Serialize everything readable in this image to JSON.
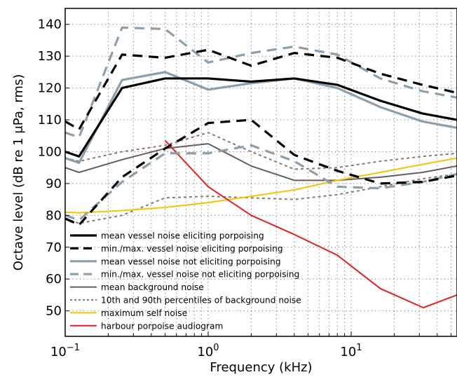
{
  "chart_data": {
    "type": "line",
    "xlabel": "Frequency (kHz)",
    "ylabel": "Octave level (dB re 1 μPa, rms)",
    "x_scale": "log",
    "xlim": [
      0.1,
      55
    ],
    "ylim": [
      42,
      145
    ],
    "grid": true,
    "legend_position": "lower-left",
    "x_ticks": [
      {
        "value": 0.1,
        "base": "10",
        "exp": "−1"
      },
      {
        "value": 1,
        "base": "10",
        "exp": "0"
      },
      {
        "value": 10,
        "base": "10",
        "exp": "1"
      }
    ],
    "y_ticks": [
      {
        "value": 50,
        "label": "50"
      },
      {
        "value": 60,
        "label": "60"
      },
      {
        "value": 70,
        "label": "70"
      },
      {
        "value": 80,
        "label": "80"
      },
      {
        "value": 90,
        "label": "90"
      },
      {
        "value": 100,
        "label": "100"
      },
      {
        "value": 110,
        "label": "110"
      },
      {
        "value": 120,
        "label": "120"
      },
      {
        "value": 130,
        "label": "130"
      },
      {
        "value": 140,
        "label": "140"
      }
    ],
    "series": [
      {
        "name": "mean vessel noise eliciting porpoising",
        "color": "#000000",
        "style": "solid",
        "width": 3.2,
        "points": [
          [
            0.1,
            100
          ],
          [
            0.125,
            98.5
          ],
          [
            0.25,
            120
          ],
          [
            0.5,
            123
          ],
          [
            1,
            123
          ],
          [
            2,
            122
          ],
          [
            4,
            123
          ],
          [
            8,
            121
          ],
          [
            16,
            116
          ],
          [
            31.5,
            112
          ],
          [
            55,
            110
          ]
        ]
      },
      {
        "name": "min./max. vessel noise eliciting porpoising",
        "color": "#000000",
        "style": "dash",
        "width": 3.2,
        "points": [
          [
            0.1,
            109.5
          ],
          [
            0.125,
            107
          ],
          [
            0.25,
            130.5
          ],
          [
            0.5,
            129.5
          ],
          [
            1,
            132
          ],
          [
            2,
            127
          ],
          [
            4,
            131
          ],
          [
            8,
            129.5
          ],
          [
            16,
            124.5
          ],
          [
            31.5,
            121
          ],
          [
            55,
            118.5
          ]
        ],
        "points2": [
          [
            0.1,
            79
          ],
          [
            0.125,
            77
          ],
          [
            0.25,
            92
          ],
          [
            0.5,
            101
          ],
          [
            1,
            109
          ],
          [
            2,
            110
          ],
          [
            4,
            99
          ],
          [
            8,
            94
          ],
          [
            16,
            90
          ],
          [
            31.5,
            90.5
          ],
          [
            55,
            92.5
          ]
        ]
      },
      {
        "name": "mean vessel noise not eliciting porpoising",
        "color": "#8c9fac",
        "style": "solid",
        "width": 3.2,
        "points": [
          [
            0.1,
            98
          ],
          [
            0.125,
            96.5
          ],
          [
            0.25,
            122.5
          ],
          [
            0.5,
            125
          ],
          [
            1,
            119.5
          ],
          [
            2,
            121.5
          ],
          [
            4,
            123
          ],
          [
            8,
            120
          ],
          [
            16,
            114
          ],
          [
            31.5,
            109.5
          ],
          [
            55,
            107.5
          ]
        ]
      },
      {
        "name": "min./max. vessel noise not eliciting porpoising",
        "color": "#8c9fac",
        "style": "dash",
        "width": 3.2,
        "points": [
          [
            0.1,
            106
          ],
          [
            0.125,
            104.5
          ],
          [
            0.25,
            139
          ],
          [
            0.5,
            138.5
          ],
          [
            1,
            128
          ],
          [
            2,
            131
          ],
          [
            4,
            133
          ],
          [
            8,
            130.5
          ],
          [
            16,
            123
          ],
          [
            31.5,
            119
          ],
          [
            55,
            117
          ]
        ],
        "points2": [
          [
            0.1,
            80
          ],
          [
            0.125,
            78.5
          ],
          [
            0.25,
            90.5
          ],
          [
            0.5,
            99.5
          ],
          [
            1,
            99.5
          ],
          [
            2,
            102
          ],
          [
            4,
            97
          ],
          [
            8,
            89
          ],
          [
            16,
            88.5
          ],
          [
            31.5,
            90.5
          ],
          [
            55,
            93
          ]
        ]
      },
      {
        "name": "mean background noise",
        "color": "#6b5a5a",
        "style": "solid",
        "width": 2,
        "points": [
          [
            0.1,
            95
          ],
          [
            0.125,
            93.5
          ],
          [
            0.25,
            97.5
          ],
          [
            0.5,
            101
          ],
          [
            1,
            102.5
          ],
          [
            2,
            95.5
          ],
          [
            4,
            91
          ],
          [
            8,
            91
          ],
          [
            16,
            92
          ],
          [
            31.5,
            93.5
          ],
          [
            55,
            95.5
          ]
        ]
      },
      {
        "name": "10th and 90th percentiles of background noise",
        "color": "#8a7878",
        "style": "dot",
        "width": 2,
        "points": [
          [
            0.1,
            98
          ],
          [
            0.125,
            97
          ],
          [
            0.25,
            100
          ],
          [
            0.5,
            102
          ],
          [
            1,
            106
          ],
          [
            2,
            100
          ],
          [
            4,
            94.5
          ],
          [
            8,
            95
          ],
          [
            16,
            97
          ],
          [
            31.5,
            98.5
          ],
          [
            55,
            99.5
          ]
        ],
        "points2": [
          [
            0.1,
            79
          ],
          [
            0.125,
            77.5
          ],
          [
            0.25,
            80
          ],
          [
            0.5,
            85.5
          ],
          [
            1,
            86
          ],
          [
            2,
            85.5
          ],
          [
            4,
            85
          ],
          [
            8,
            86.5
          ],
          [
            16,
            89
          ],
          [
            31.5,
            91.5
          ],
          [
            55,
            93
          ]
        ]
      },
      {
        "name": "maximum self noise",
        "color": "#f5c400",
        "style": "solid",
        "width": 2,
        "points": [
          [
            0.1,
            81
          ],
          [
            0.125,
            80.8
          ],
          [
            0.25,
            81.5
          ],
          [
            0.5,
            82.5
          ],
          [
            1,
            84
          ],
          [
            2,
            86
          ],
          [
            4,
            88
          ],
          [
            8,
            91
          ],
          [
            16,
            93.5
          ],
          [
            31.5,
            96
          ],
          [
            55,
            98
          ]
        ]
      },
      {
        "name": "harbour porpoise audiogram",
        "color": "#e81e1e",
        "style": "solid",
        "width": 2,
        "points": [
          [
            0.5,
            103.5
          ],
          [
            1,
            89
          ],
          [
            2,
            80
          ],
          [
            4,
            74
          ],
          [
            8,
            67.5
          ],
          [
            16,
            57
          ],
          [
            32,
            51
          ],
          [
            55,
            55
          ]
        ]
      }
    ]
  }
}
